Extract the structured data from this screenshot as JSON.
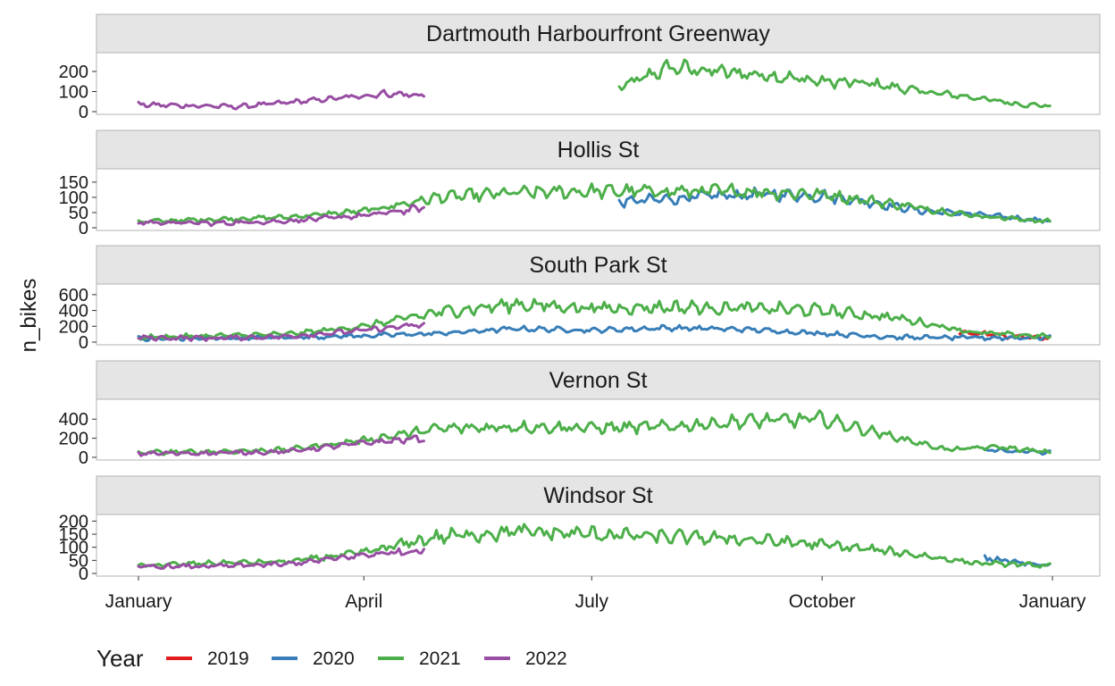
{
  "chart_data": {
    "type": "line",
    "ylabel": "n_bikes",
    "xlabel": "",
    "x_axis": {
      "tick_labels": [
        "January",
        "April",
        "July",
        "October",
        "January"
      ],
      "range_days": [
        0,
        365
      ]
    },
    "legend": {
      "title": "Year",
      "position": "bottom",
      "entries": [
        {
          "name": "2019",
          "color": "#e41a1c"
        },
        {
          "name": "2020",
          "color": "#377eb8"
        },
        {
          "name": "2021",
          "color": "#4daf4a"
        },
        {
          "name": "2022",
          "color": "#984ea3"
        }
      ]
    },
    "grid": false,
    "facets": [
      {
        "title": "Dartmouth Harbourfront Greenway",
        "ylim": [
          0,
          280
        ],
        "yticks": [
          0,
          100,
          200
        ],
        "series": [
          {
            "name": "2021",
            "x": [
              "Jul 12",
              "Aug 1",
              "Aug 20",
              "Sep 10",
              "Oct 1",
              "Oct 20",
              "Nov 10",
              "Dec 1",
              "Dec 20",
              "Dec 31"
            ],
            "values": [
              120,
              220,
              200,
              180,
              150,
              140,
              100,
              70,
              35,
              30
            ]
          },
          {
            "name": "2022",
            "x": [
              "Jan 1",
              "Jan 20",
              "Feb 10",
              "Mar 1",
              "Mar 20",
              "Apr 10",
              "Apr 25"
            ],
            "values": [
              35,
              30,
              25,
              45,
              65,
              90,
              80
            ]
          }
        ]
      },
      {
        "title": "Hollis St",
        "ylim": [
          0,
          185
        ],
        "yticks": [
          0,
          50,
          100,
          150
        ],
        "series": [
          {
            "name": "2020",
            "x": [
              "Jul 12",
              "Aug 1",
              "Aug 20",
              "Sep 10",
              "Oct 1",
              "Oct 20",
              "Nov 10",
              "Dec 1",
              "Dec 20",
              "Dec 31"
            ],
            "values": [
              85,
              95,
              105,
              110,
              105,
              85,
              55,
              45,
              30,
              22
            ]
          },
          {
            "name": "2021",
            "x": [
              "Jan 1",
              "Feb 1",
              "Mar 1",
              "Apr 1",
              "May 1",
              "Jun 1",
              "Jul 1",
              "Aug 1",
              "Sep 1",
              "Oct 1",
              "Nov 1",
              "Dec 1",
              "Dec 31"
            ],
            "values": [
              20,
              28,
              35,
              55,
              100,
              115,
              120,
              120,
              120,
              110,
              75,
              40,
              20
            ]
          },
          {
            "name": "2022",
            "x": [
              "Jan 1",
              "Feb 1",
              "Mar 1",
              "Apr 1",
              "Apr 25"
            ],
            "values": [
              18,
              15,
              22,
              40,
              65
            ]
          }
        ]
      },
      {
        "title": "South Park St",
        "ylim": [
          0,
          700
        ],
        "yticks": [
          0,
          200,
          400,
          600
        ],
        "series": [
          {
            "name": "2019",
            "x": [
              "Nov 25",
              "Dec 5",
              "Dec 15",
              "Dec 31"
            ],
            "values": [
              120,
              110,
              70,
              60
            ]
          },
          {
            "name": "2020",
            "x": [
              "Jan 1",
              "Feb 1",
              "Mar 1",
              "Apr 1",
              "May 1",
              "Jun 1",
              "Jul 1",
              "Aug 1",
              "Sep 1",
              "Oct 1",
              "Nov 1",
              "Dec 1",
              "Dec 31"
            ],
            "values": [
              40,
              50,
              60,
              80,
              110,
              170,
              150,
              180,
              160,
              110,
              60,
              55,
              55
            ]
          },
          {
            "name": "2021",
            "x": [
              "Jan 1",
              "Feb 1",
              "Mar 1",
              "Apr 1",
              "May 1",
              "Jun 1",
              "Jul 1",
              "Aug 1",
              "Sep 1",
              "Oct 1",
              "Nov 1",
              "Dec 1",
              "Dec 31"
            ],
            "values": [
              60,
              80,
              100,
              200,
              380,
              480,
              430,
              440,
              430,
              400,
              300,
              120,
              70
            ]
          },
          {
            "name": "2022",
            "x": [
              "Jan 1",
              "Feb 1",
              "Mar 1",
              "Apr 1",
              "Apr 25"
            ],
            "values": [
              55,
              50,
              70,
              150,
              220
            ]
          }
        ]
      },
      {
        "title": "Vernon St",
        "ylim": [
          0,
          580
        ],
        "yticks": [
          0,
          200,
          400
        ],
        "series": [
          {
            "name": "2020",
            "x": [
              "Dec 5",
              "Dec 20",
              "Dec 31"
            ],
            "values": [
              80,
              60,
              50
            ]
          },
          {
            "name": "2021",
            "x": [
              "Jan 1",
              "Feb 1",
              "Mar 1",
              "Apr 1",
              "May 1",
              "Jun 1",
              "Jul 1",
              "Aug 1",
              "Sep 1",
              "Oct 1",
              "Nov 1",
              "Nov 20",
              "Dec 10",
              "Dec 31"
            ],
            "values": [
              50,
              60,
              80,
              180,
              300,
              320,
              310,
              320,
              380,
              400,
              200,
              80,
              110,
              50
            ]
          },
          {
            "name": "2022",
            "x": [
              "Jan 1",
              "Feb 1",
              "Mar 1",
              "Apr 1",
              "Apr 25"
            ],
            "values": [
              40,
              45,
              60,
              150,
              200
            ]
          }
        ]
      },
      {
        "title": "Windsor St",
        "ylim": [
          0,
          215
        ],
        "yticks": [
          0,
          50,
          100,
          150,
          200
        ],
        "series": [
          {
            "name": "2020",
            "x": [
              "Dec 5",
              "Dec 20",
              "Dec 31"
            ],
            "values": [
              60,
              40,
              30
            ]
          },
          {
            "name": "2021",
            "x": [
              "Jan 1",
              "Feb 1",
              "Mar 1",
              "Apr 1",
              "May 1",
              "Jun 1",
              "Jul 1",
              "Aug 1",
              "Sep 1",
              "Oct 1",
              "Nov 1",
              "Dec 1",
              "Dec 31"
            ],
            "values": [
              30,
              40,
              45,
              80,
              140,
              160,
              150,
              140,
              130,
              110,
              80,
              40,
              30
            ]
          },
          {
            "name": "2022",
            "x": [
              "Jan 1",
              "Feb 1",
              "Mar 1",
              "Apr 1",
              "Apr 25"
            ],
            "values": [
              25,
              28,
              35,
              70,
              90
            ]
          }
        ]
      }
    ]
  }
}
